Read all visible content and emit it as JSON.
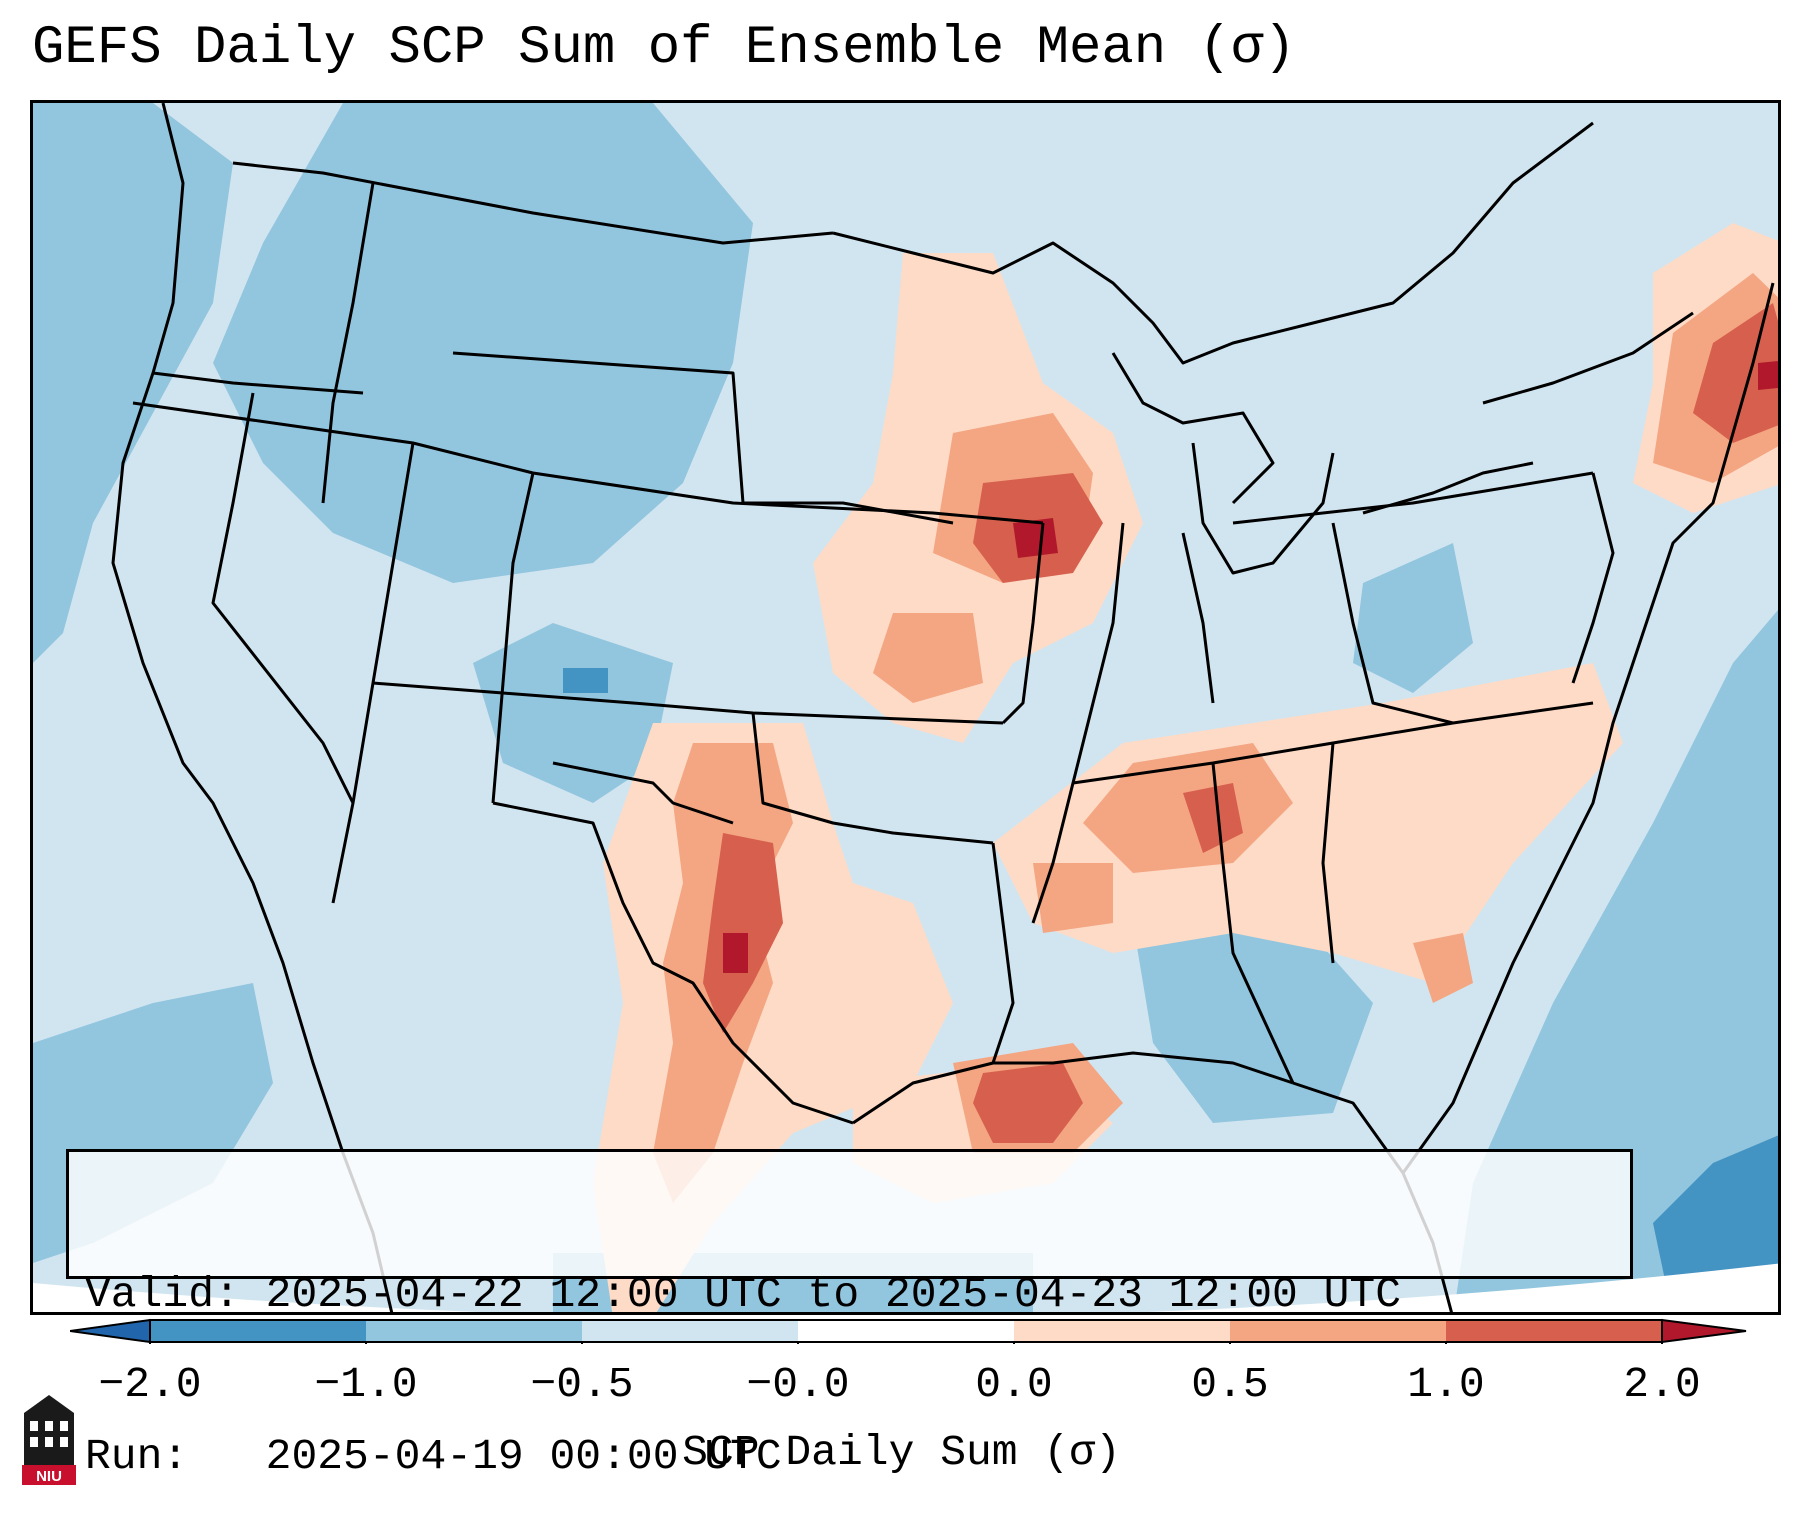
{
  "title": "GEFS Daily SCP Sum of Ensemble Mean (σ)",
  "info": {
    "valid_label": "Valid:",
    "valid_value": "2025-04-22 12:00 UTC to 2025-04-23 12:00 UTC",
    "run_label": "Run:",
    "run_value": "2025-04-19 00:00 UTC"
  },
  "colorbar": {
    "label": "SCP Daily Sum (σ)",
    "ticks": [
      "−2.0",
      "−1.0",
      "−0.5",
      "−0.0",
      "0.0",
      "0.5",
      "1.0",
      "2.0"
    ],
    "bins": [
      {
        "from": "-2.0",
        "to": "-1.0",
        "color": "#4393c3"
      },
      {
        "from": "-1.0",
        "to": "-0.5",
        "color": "#92c5de"
      },
      {
        "from": "-0.5",
        "to": "-0.0",
        "color": "#d1e5f0"
      },
      {
        "from": "0.0",
        "to": "0.5",
        "color": "#fddbc7"
      },
      {
        "from": "0.5",
        "to": "1.0",
        "color": "#f4a582"
      },
      {
        "from": "1.0",
        "to": "2.0",
        "color": "#d6604d"
      }
    ],
    "under_color": "#2166ac",
    "over_color": "#b2182b"
  },
  "colors": {
    "lowest": "#4393c3",
    "low": "#92c5de",
    "neutral_low": "#d1e5f0",
    "neutral_high": "#fddbc7",
    "high": "#f4a582",
    "highest": "#d6604d",
    "extreme": "#b2182b"
  },
  "logo": {
    "text": "NIU",
    "icon": "university-building-icon"
  }
}
